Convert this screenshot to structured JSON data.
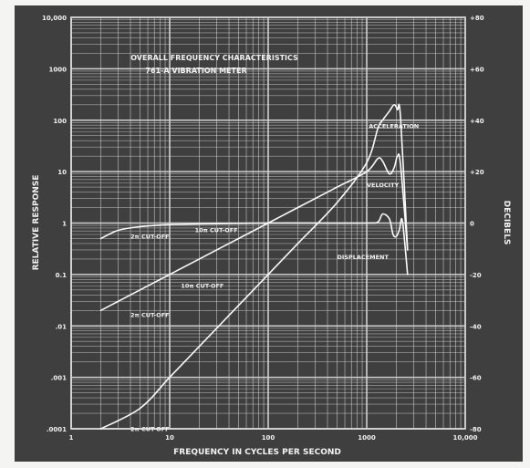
{
  "chart_data": {
    "type": "line",
    "title": "OVERALL FREQUENCY CHARACTERISTICS",
    "subtitle": "761-A VIBRATION METER",
    "xlabel": "FREQUENCY IN CYCLES PER SECOND",
    "ylabel": "RELATIVE RESPONSE",
    "y2label": "DECIBELS",
    "x_scale": "log",
    "y_scale": "log",
    "xlim": [
      1,
      10000
    ],
    "ylim": [
      0.0001,
      10000
    ],
    "y2lim": [
      -80,
      80
    ],
    "grid": true,
    "x_ticks": [
      {
        "value": 1,
        "label": "1"
      },
      {
        "value": 10,
        "label": "10"
      },
      {
        "value": 100,
        "label": "100"
      },
      {
        "value": 1000,
        "label": "1000"
      },
      {
        "value": 10000,
        "label": "10,000"
      }
    ],
    "y_ticks": [
      {
        "value": 10000,
        "label": "10,000"
      },
      {
        "value": 1000,
        "label": "1000"
      },
      {
        "value": 100,
        "label": "100"
      },
      {
        "value": 10,
        "label": "10"
      },
      {
        "value": 1,
        "label": "1"
      },
      {
        "value": 0.1,
        "label": "0.1"
      },
      {
        "value": 0.01,
        "label": ".01"
      },
      {
        "value": 0.001,
        "label": ".001"
      },
      {
        "value": 0.0001,
        "label": ".0001"
      }
    ],
    "y2_ticks": [
      {
        "value": 80,
        "label": "+80"
      },
      {
        "value": 60,
        "label": "+60"
      },
      {
        "value": 40,
        "label": "+40"
      },
      {
        "value": 20,
        "label": "+20"
      },
      {
        "value": 0,
        "label": "0"
      },
      {
        "value": -20,
        "label": "-20"
      },
      {
        "value": -40,
        "label": "-40"
      },
      {
        "value": -60,
        "label": "-60"
      },
      {
        "value": -80,
        "label": "-80"
      }
    ],
    "series": [
      {
        "name": "ACCELERATION",
        "x": [
          2,
          5,
          10,
          20,
          50,
          100,
          200,
          500,
          1000,
          1300,
          1450,
          1700,
          1900,
          2050,
          2200,
          2600
        ],
        "y": [
          4e-05,
          0.00025,
          0.001,
          0.004,
          0.025,
          0.1,
          0.4,
          2.5,
          15,
          70,
          100,
          150,
          200,
          160,
          120,
          0.3
        ]
      },
      {
        "name": "VELOCITY",
        "x": [
          2,
          5,
          10,
          20,
          50,
          100,
          200,
          500,
          1000,
          1300,
          1450,
          1700,
          1900,
          2050,
          2200,
          2600
        ],
        "y": [
          0.02,
          0.05,
          0.1,
          0.2,
          0.5,
          1,
          2,
          5,
          10,
          18,
          16,
          9,
          12,
          20,
          14,
          0.3
        ]
      },
      {
        "name": "DISPLACEMENT",
        "x": [
          2,
          3,
          5,
          10,
          30,
          100,
          300,
          1000,
          1300,
          1450,
          1700,
          1850,
          2000,
          2150,
          2300,
          2600
        ],
        "y": [
          0.5,
          0.72,
          0.85,
          0.93,
          0.97,
          1,
          1,
          1,
          1.05,
          1.5,
          1.2,
          0.6,
          0.55,
          0.75,
          1.1,
          0.1
        ]
      }
    ],
    "annotations": [
      {
        "text": "2π CUT-OFF",
        "x": 4,
        "y": 0.5
      },
      {
        "text": "10π CUT-OFF",
        "x": 18,
        "y": 0.66
      },
      {
        "text": "10π CUT-OFF",
        "x": 13,
        "y": 0.055
      },
      {
        "text": "2π CUT-OFF",
        "x": 4,
        "y": 0.015
      },
      {
        "text": "2π CUT-OFF",
        "x": 4,
        "y": 9e-05
      },
      {
        "text": "ACCELERATION",
        "x": 1050,
        "y": 70
      },
      {
        "text": "VELOCITY",
        "x": 1000,
        "y": 5
      },
      {
        "text": "DISPLACEMENT",
        "x": 500,
        "y": 0.2
      }
    ],
    "colors": {
      "background": "#3f3f3f",
      "grid": "#d8d8d8",
      "line": "#fafafa",
      "frame": "#f0f0ee"
    }
  }
}
